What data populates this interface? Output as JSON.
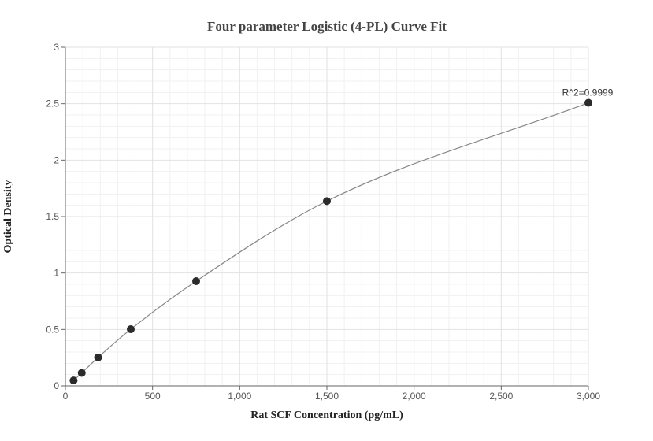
{
  "chart_data": {
    "type": "scatter",
    "title": "Four parameter Logistic (4-PL) Curve Fit",
    "xlabel": "Rat SCF Concentration (pg/mL)",
    "ylabel": "Optical Density",
    "xlim": [
      0,
      3000
    ],
    "ylim": [
      0,
      3
    ],
    "x_ticks": [
      0,
      500,
      1000,
      1500,
      2000,
      2500,
      3000
    ],
    "x_tick_labels": [
      "0",
      "500",
      "1,000",
      "1,500",
      "2,000",
      "2,500",
      "3,000"
    ],
    "y_ticks": [
      0,
      0.5,
      1,
      1.5,
      2,
      2.5,
      3
    ],
    "y_tick_labels": [
      "0",
      "0.5",
      "1",
      "1.5",
      "2",
      "2.5",
      "3"
    ],
    "grid": true,
    "points": [
      {
        "x": 46.875,
        "y": 0.048
      },
      {
        "x": 93.75,
        "y": 0.115
      },
      {
        "x": 187.5,
        "y": 0.252
      },
      {
        "x": 375,
        "y": 0.502
      },
      {
        "x": 750,
        "y": 0.928
      },
      {
        "x": 1500,
        "y": 1.637
      },
      {
        "x": 3000,
        "y": 2.508
      }
    ],
    "fit": {
      "type": "4PL",
      "color": "#888888"
    },
    "point_color": "#2b2b2b",
    "annotation": "R^2=0.9999"
  }
}
